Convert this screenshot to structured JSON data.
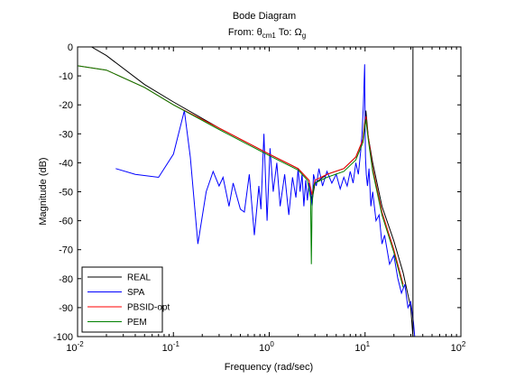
{
  "chart_data": {
    "type": "line",
    "title": "Bode Diagram",
    "subtitle": {
      "prefix": "From: θ",
      "from_sub": "cm1",
      "middle": "  To: Ω",
      "to_sub": "g"
    },
    "xlabel": "Frequency  (rad/sec)",
    "ylabel": "Magnitude (dB)",
    "xscale": "log",
    "xlim": [
      0.01,
      100
    ],
    "ylim": [
      -100,
      0
    ],
    "xticks": [
      {
        "base": "10",
        "exp": "-2",
        "v": 0.01
      },
      {
        "base": "10",
        "exp": "-1",
        "v": 0.1
      },
      {
        "base": "10",
        "exp": "0",
        "v": 1
      },
      {
        "base": "10",
        "exp": "1",
        "v": 10
      },
      {
        "base": "10",
        "exp": "2",
        "v": 100
      }
    ],
    "yticks": [
      "0",
      "-10",
      "-20",
      "-30",
      "-40",
      "-50",
      "-60",
      "-70",
      "-80",
      "-90",
      "-100"
    ],
    "ytick_values": [
      0,
      -10,
      -20,
      -30,
      -40,
      -50,
      -60,
      -70,
      -80,
      -90,
      -100
    ],
    "grid": false,
    "legend_position": "bottom-left",
    "vertical_line_x": 31.6,
    "series": [
      {
        "name": "REAL",
        "color": "#000000",
        "x": [
          0.014,
          0.02,
          0.05,
          0.1,
          0.3,
          1,
          2,
          2.6,
          2.8,
          3.0,
          4,
          6,
          8,
          9.5,
          10.2,
          10.8,
          12,
          15,
          20,
          25,
          30,
          31.6
        ],
        "y": [
          0,
          -3,
          -13,
          -19,
          -28,
          -37,
          -42,
          -46,
          -53,
          -47,
          -44,
          -42,
          -38,
          -32,
          -22,
          -31,
          -40,
          -55,
          -67,
          -78,
          -90,
          -100
        ]
      },
      {
        "name": "SPA",
        "color": "#0000ff",
        "x": [
          0.025,
          0.04,
          0.07,
          0.1,
          0.13,
          0.15,
          0.18,
          0.22,
          0.26,
          0.3,
          0.33,
          0.38,
          0.42,
          0.5,
          0.55,
          0.62,
          0.7,
          0.78,
          0.82,
          0.88,
          0.95,
          1.02,
          1.1,
          1.2,
          1.3,
          1.45,
          1.6,
          1.75,
          1.9,
          2.0,
          2.1,
          2.2,
          2.3,
          2.4,
          2.5,
          2.6,
          2.7,
          2.8,
          2.9,
          3.1,
          3.3,
          3.6,
          4.0,
          4.5,
          5,
          5.5,
          6,
          6.5,
          7,
          7.5,
          8,
          8.5,
          9,
          9.3,
          9.6,
          9.9,
          10.0,
          10.1,
          10.3,
          10.6,
          11,
          11.5,
          12,
          13,
          14,
          15,
          16,
          18,
          20,
          22,
          24,
          26,
          28,
          30,
          32,
          33
        ],
        "y": [
          -42,
          -44,
          -45,
          -37,
          -22,
          -38,
          -68,
          -50,
          -43,
          -48,
          -45,
          -55,
          -47,
          -56,
          -57,
          -44,
          -65,
          -48,
          -56,
          -30,
          -60,
          -35,
          -50,
          -40,
          -55,
          -44,
          -58,
          -45,
          -52,
          -42,
          -50,
          -44,
          -55,
          -46,
          -53,
          -47,
          -50,
          -55,
          -44,
          -48,
          -42,
          -48,
          -43,
          -47,
          -44,
          -49,
          -45,
          -48,
          -43,
          -47,
          -40,
          -44,
          -36,
          -30,
          -20,
          -6,
          -28,
          -38,
          -44,
          -48,
          -42,
          -55,
          -50,
          -60,
          -58,
          -68,
          -65,
          -75,
          -72,
          -80,
          -85,
          -82,
          -90,
          -88,
          -95,
          -100
        ]
      },
      {
        "name": "PBSID-opt",
        "color": "#ff0000",
        "x": [
          0.01,
          0.02,
          0.05,
          0.1,
          0.3,
          1,
          2,
          2.6,
          2.8,
          3.0,
          4,
          6,
          8,
          9.5,
          10.2,
          10.8,
          12,
          15,
          20,
          25
        ],
        "y": [
          -6.5,
          -8,
          -14,
          -20,
          -28,
          -37,
          -42,
          -46,
          -51,
          -46,
          -44,
          -42,
          -38,
          -32,
          -24,
          -31,
          -42,
          -57,
          -70,
          -82
        ]
      },
      {
        "name": "PEM",
        "color": "#008000",
        "x": [
          0.01,
          0.02,
          0.05,
          0.1,
          0.3,
          1,
          2,
          2.5,
          2.7,
          2.75,
          2.8,
          2.9,
          3.0,
          4,
          6,
          8,
          9.5,
          10.2,
          10.8,
          12,
          15,
          20,
          25
        ],
        "y": [
          -6.5,
          -8,
          -14,
          -20,
          -28.5,
          -37.5,
          -42.5,
          -46,
          -52,
          -75,
          -55,
          -48,
          -47,
          -45,
          -43,
          -39,
          -33,
          -25,
          -32,
          -43,
          -58,
          -71,
          -83
        ]
      }
    ]
  }
}
